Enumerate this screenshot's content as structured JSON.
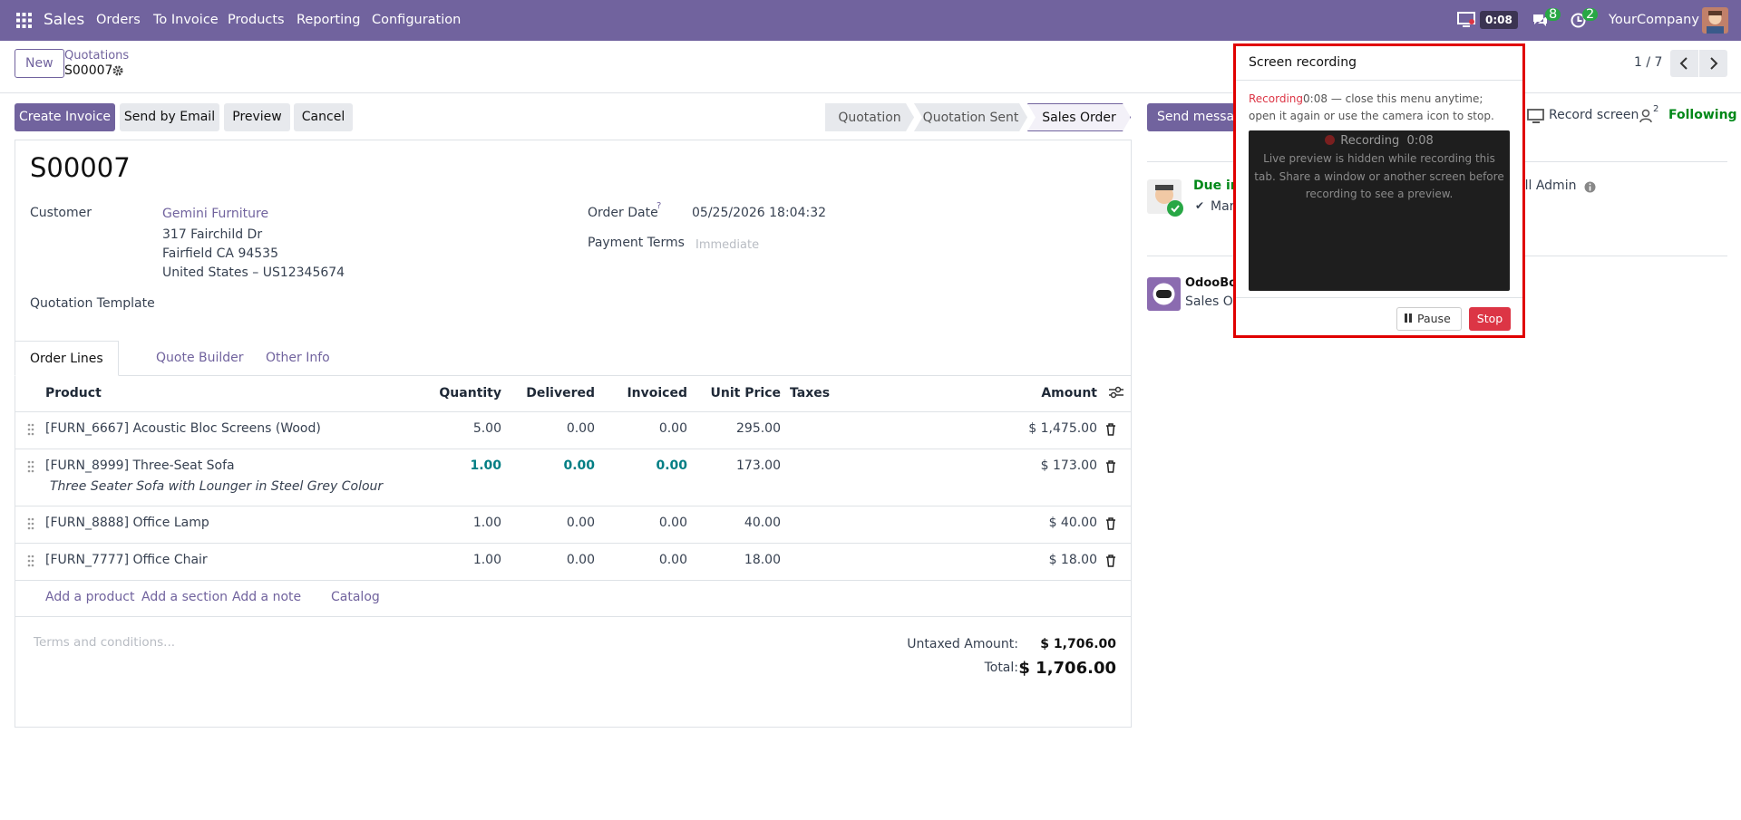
{
  "navbar": {
    "app": "Sales",
    "menu": [
      "Orders",
      "To Invoice",
      "Products",
      "Reporting",
      "Configuration"
    ],
    "timer": "0:08",
    "messages_badge": "8",
    "activities_badge": "2",
    "company": "YourCompany"
  },
  "control_panel": {
    "new_button": "New",
    "breadcrumb": "Quotations",
    "record": "S00007",
    "pager": "1 / 7"
  },
  "actions": {
    "buttons": [
      "Create Invoice",
      "Send by Email",
      "Preview",
      "Cancel"
    ],
    "statusbar": [
      "Quotation",
      "Quotation Sent",
      "Sales Order"
    ]
  },
  "form": {
    "title": "S00007",
    "customer_label": "Customer",
    "customer": "Gemini Furniture",
    "address": [
      "317 Fairchild Dr",
      "Fairfield CA 94535",
      "United States – US12345674"
    ],
    "template_label": "Quotation Template",
    "order_date_label": "Order Date",
    "order_date_help": "?",
    "order_date": "05/25/2026 18:04:32",
    "payment_terms_label": "Payment Terms",
    "payment_terms_placeholder": "Immediate",
    "tabs": [
      "Order Lines",
      "Quote Builder",
      "Other Info"
    ],
    "table": {
      "columns": [
        "Product",
        "Quantity",
        "Delivered",
        "Invoiced",
        "Unit Price",
        "Taxes",
        "Amount"
      ],
      "rows": [
        {
          "product": "[FURN_6667] Acoustic Bloc Screens (Wood)",
          "quantity": "5.00",
          "delivered": "0.00",
          "invoiced": "0.00",
          "unit_price": "295.00",
          "amount": "$ 1,475.00"
        },
        {
          "product": "[FURN_8999] Three-Seat Sofa",
          "description": "Three Seater Sofa with Lounger in Steel Grey Colour",
          "quantity": "1.00",
          "delivered": "0.00",
          "invoiced": "0.00",
          "unit_price": "173.00",
          "amount": "$ 173.00"
        },
        {
          "product": "[FURN_8888] Office Lamp",
          "quantity": "1.00",
          "delivered": "0.00",
          "invoiced": "0.00",
          "unit_price": "40.00",
          "amount": "$ 40.00"
        },
        {
          "product": "[FURN_7777] Office Chair",
          "quantity": "1.00",
          "delivered": "0.00",
          "invoiced": "0.00",
          "unit_price": "18.00",
          "amount": "$ 18.00"
        }
      ],
      "add_links": [
        "Add a product",
        "Add a section",
        "Add a note",
        "Catalog"
      ]
    },
    "terms_placeholder": "Terms and conditions...",
    "untaxed_label": "Untaxed Amount:",
    "untaxed": "$ 1,706.00",
    "total_label": "Total:",
    "total": "$ 1,706.00"
  },
  "chatter": {
    "send_message": "Send message",
    "record_screen": "Record screen",
    "followers": "2",
    "following": "Following",
    "activity": {
      "due": "Due in",
      "mark": "Mar",
      "user": "ell Admin"
    },
    "message": {
      "author": "OdooBot",
      "body": "Sales Or"
    }
  },
  "popup": {
    "title": "Screen recording",
    "status": "Recording",
    "elapsed": "0:08",
    "hint": "— close this menu anytime; open it again or use the camera icon to stop.",
    "preview_status": "Recording",
    "preview_time": "0:08",
    "preview_note": "Live preview is hidden while recording this tab. Share a window or another screen before recording to see a preview.",
    "pause": "Pause",
    "stop": "Stop"
  }
}
